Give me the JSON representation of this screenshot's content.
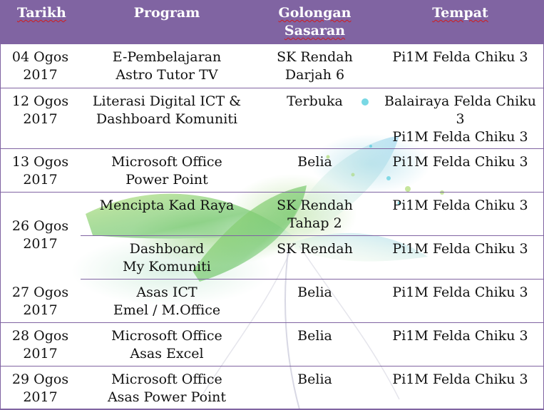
{
  "header": {
    "tarikh": "Tarikh",
    "program": "Program",
    "golongan_1": "Golongan",
    "golongan_2": "Sasaran",
    "tempat": "Tempat"
  },
  "rows": [
    {
      "date_1": "04 Ogos",
      "date_2": "2017",
      "program": [
        "E-Pembelajaran",
        "Astro Tutor TV"
      ],
      "target": [
        "SK Rendah",
        "Darjah 6"
      ],
      "place": [
        "Pi1M Felda Chiku 3"
      ]
    },
    {
      "date_1": "12 Ogos",
      "date_2": "2017",
      "program": [
        "Literasi Digital ICT &",
        "Dashboard Komuniti"
      ],
      "target": [
        "Terbuka"
      ],
      "place": [
        "Balairaya Felda Chiku",
        "3",
        "Pi1M Felda Chiku 3"
      ]
    },
    {
      "date_1": "13 Ogos",
      "date_2": "2017",
      "program": [
        "Microsoft Office",
        "Power Point"
      ],
      "target": [
        "Belia"
      ],
      "place": [
        "Pi1M Felda Chiku 3"
      ]
    },
    {
      "date_1": "26 Ogos",
      "date_2": "2017",
      "program": [
        "Mencipta Kad Raya"
      ],
      "target": [
        "SK Rendah",
        "Tahap 2"
      ],
      "place": [
        "Pi1M Felda Chiku 3"
      ]
    },
    {
      "program": [
        "Dashboard",
        "My Komuniti"
      ],
      "target": [
        "SK Rendah"
      ],
      "place": [
        "Pi1M Felda Chiku 3"
      ]
    },
    {
      "date_1": "27 Ogos",
      "date_2": "2017",
      "program": [
        "Asas ICT",
        "Emel / M.Office"
      ],
      "target": [
        "Belia"
      ],
      "place": [
        "Pi1M Felda Chiku 3"
      ]
    },
    {
      "date_1": "28 Ogos",
      "date_2": "2017",
      "program": [
        "Microsoft Office",
        "Asas Excel"
      ],
      "target": [
        "Belia"
      ],
      "place": [
        "Pi1M Felda Chiku 3"
      ]
    },
    {
      "date_1": "29 Ogos",
      "date_2": "2017",
      "program": [
        "Microsoft Office",
        "Asas Power Point"
      ],
      "target": [
        "Belia"
      ],
      "place": [
        "Pi1M Felda Chiku 3"
      ]
    }
  ],
  "colors": {
    "header_bg": "#8064a2",
    "header_text": "#ffffff",
    "border": "#8064a2",
    "spell_underline": "#d21a1a"
  }
}
